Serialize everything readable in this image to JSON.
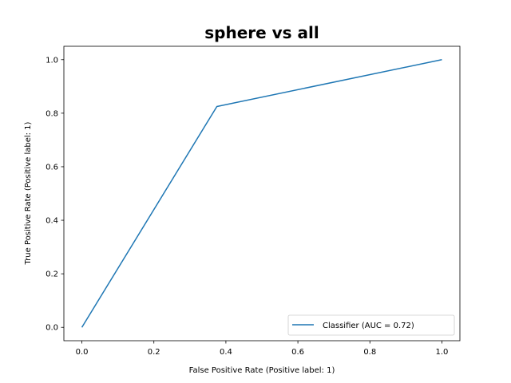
{
  "colors": {
    "series": "#1f77b4",
    "legend_border": "#cccccc",
    "axes": "#000000"
  },
  "chart_data": {
    "type": "line",
    "title": "sphere vs all",
    "xlabel": "False Positive Rate (Positive label: 1)",
    "ylabel": "True Positive Rate (Positive label: 1)",
    "xlim": [
      -0.05,
      1.05
    ],
    "ylim": [
      -0.05,
      1.05
    ],
    "xticks": [
      0.0,
      0.2,
      0.4,
      0.6,
      0.8,
      1.0
    ],
    "xtick_labels": [
      "0.0",
      "0.2",
      "0.4",
      "0.6",
      "0.8",
      "1.0"
    ],
    "yticks": [
      0.0,
      0.2,
      0.4,
      0.6,
      0.8,
      1.0
    ],
    "ytick_labels": [
      "0.0",
      "0.2",
      "0.4",
      "0.6",
      "0.8",
      "1.0"
    ],
    "grid": false,
    "legend_position": "lower-right",
    "series": [
      {
        "name": "Classifier (AUC = 0.72)",
        "x": [
          0.0,
          0.375,
          1.0
        ],
        "y": [
          0.0,
          0.825,
          1.0
        ]
      }
    ]
  }
}
